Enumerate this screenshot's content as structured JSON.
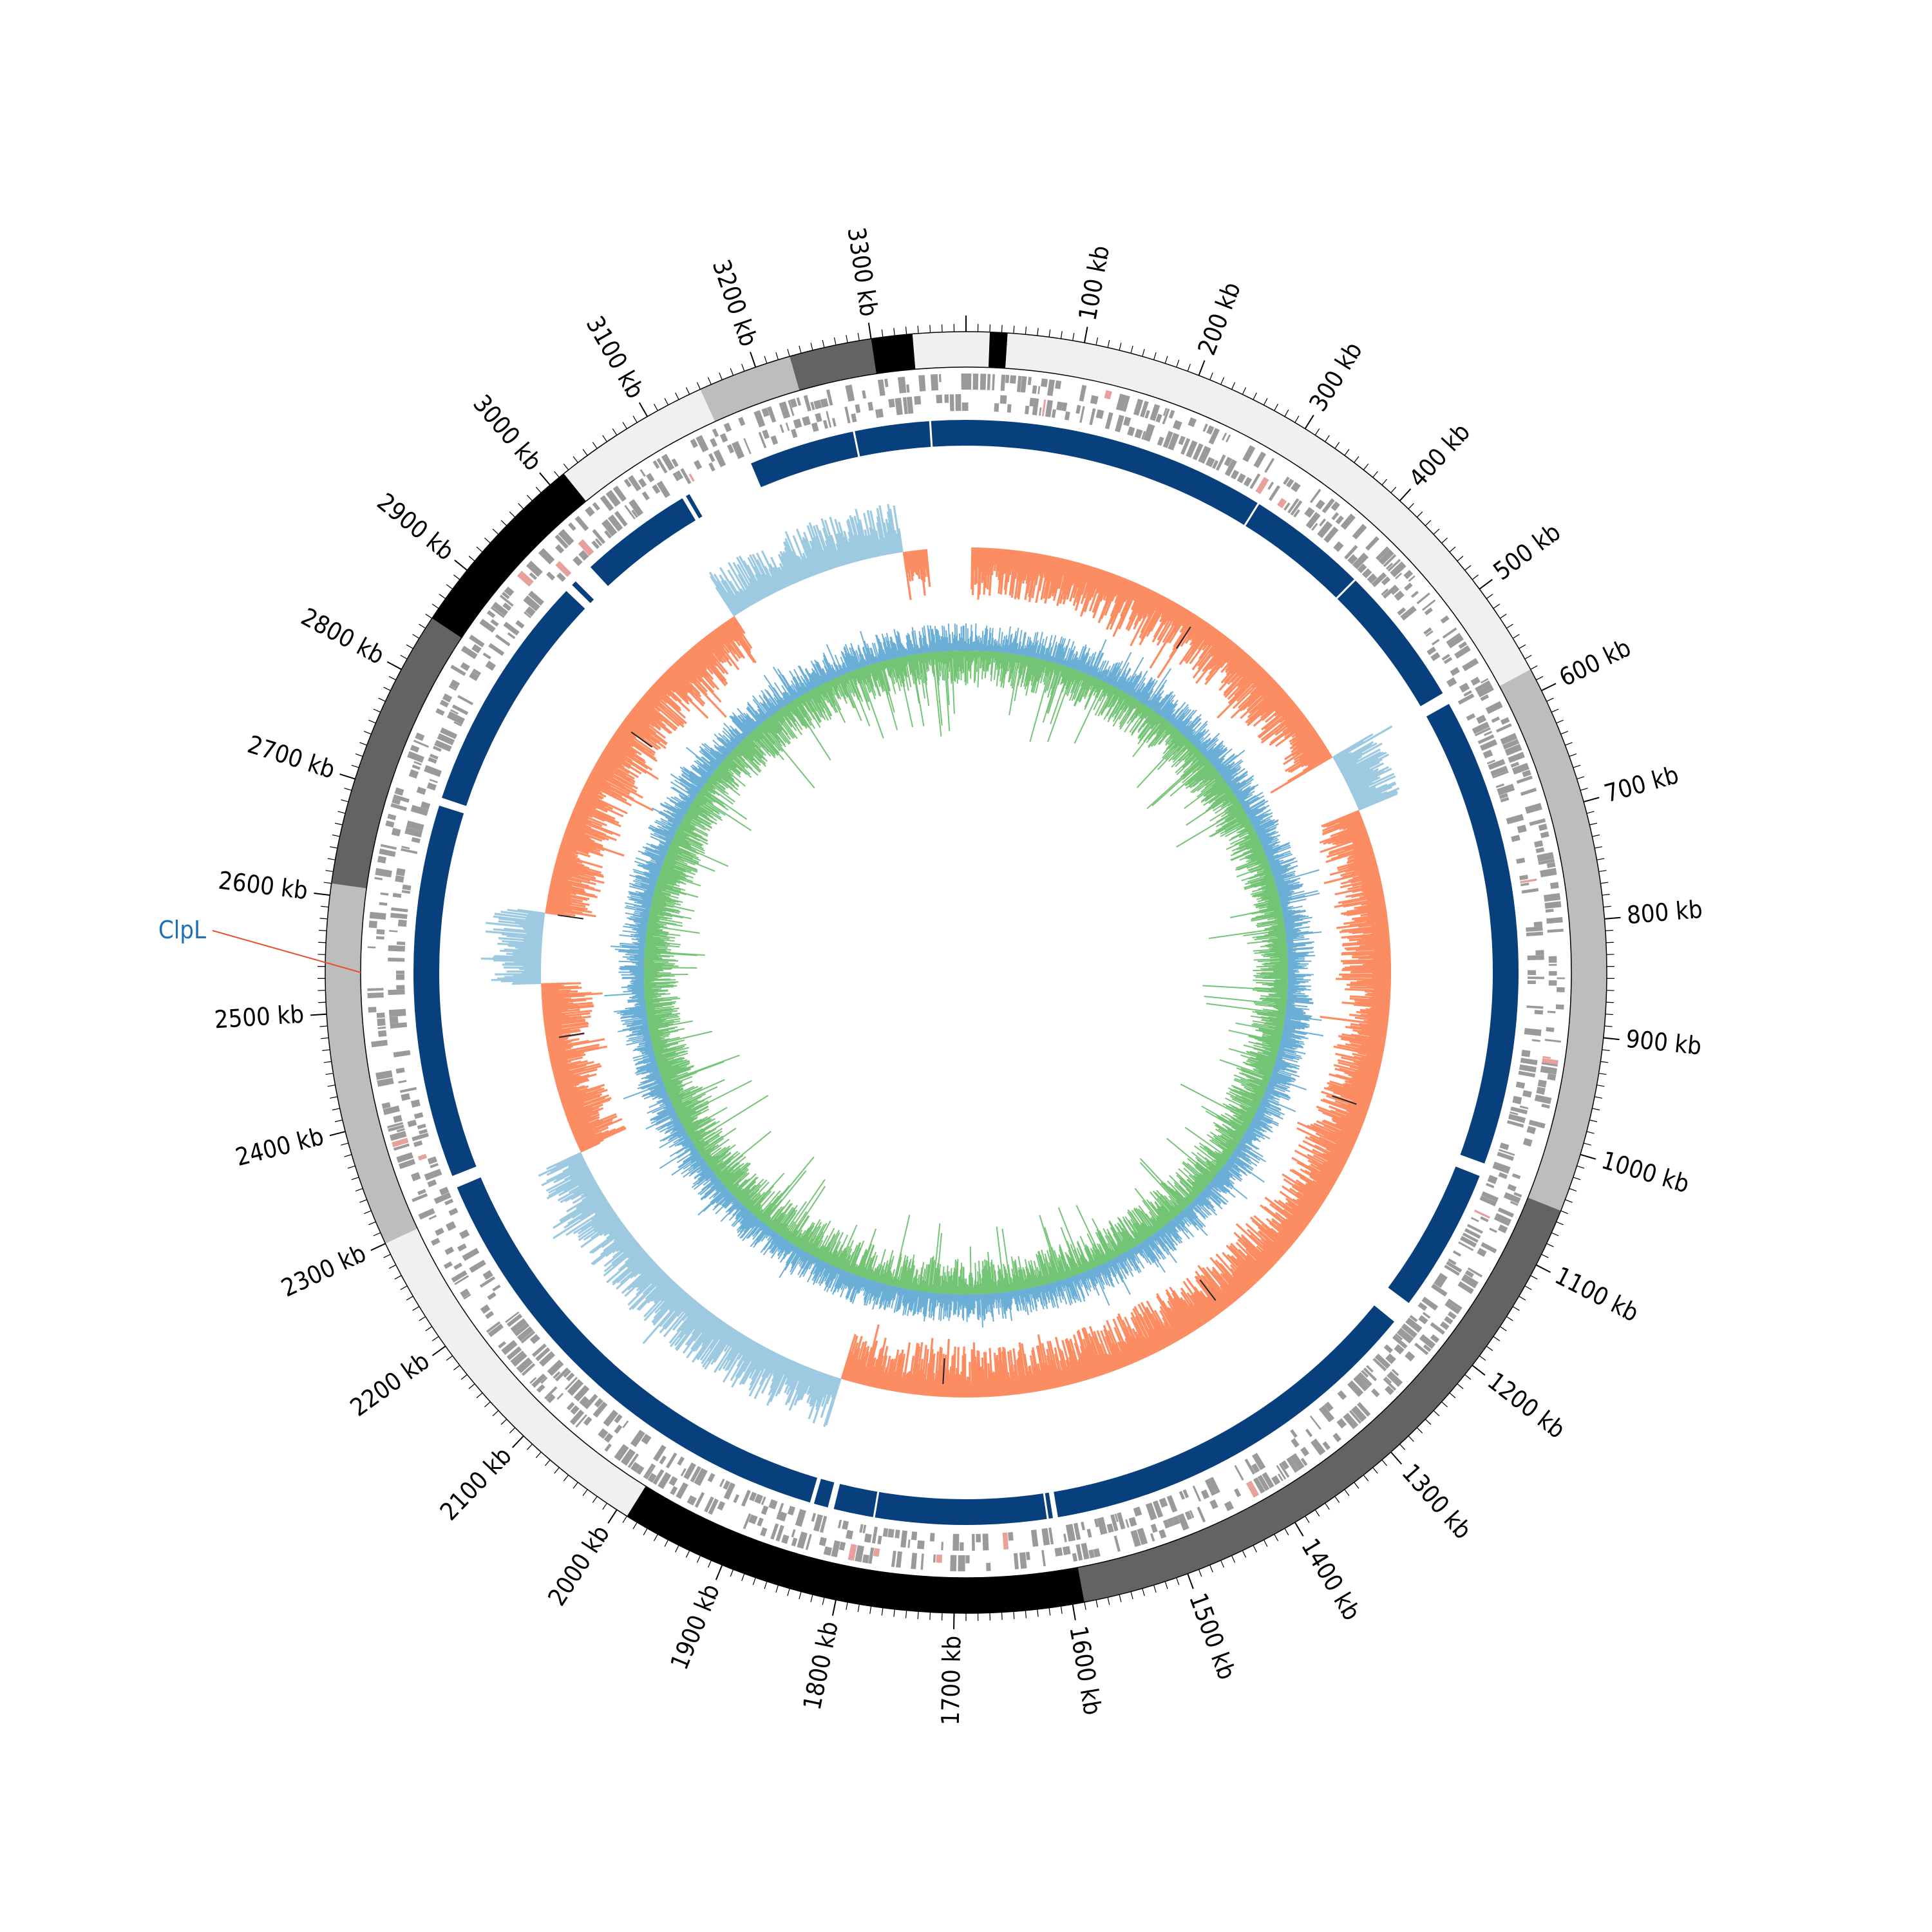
{
  "genome": {
    "length_kb": 3380,
    "tick_labels": [
      "100 kb",
      "200 kb",
      "300 kb",
      "400 kb",
      "500 kb",
      "600 kb",
      "700 kb",
      "800 kb",
      "900 kb",
      "1000 kb",
      "1100 kb",
      "1200 kb",
      "1300 kb",
      "1400 kb",
      "1500 kb",
      "1600 kb",
      "1700 kb",
      "1800 kb",
      "1900 kb",
      "2000 kb",
      "2100 kb",
      "2200 kb",
      "2300 kb",
      "2400 kb",
      "2500 kb",
      "2600 kb",
      "2700 kb",
      "2800 kb",
      "2900 kb",
      "3000 kb",
      "3100 kb",
      "3200 kb",
      "3300 kb"
    ]
  },
  "annotation": {
    "label": "ClpL",
    "position_kb": 2535,
    "label_color": "#1f6fb4",
    "line_color": "#e8502a"
  },
  "chart_data": {
    "type": "circos",
    "length_kb": 3380,
    "contig_band": [
      {
        "start": 0,
        "end": 20,
        "color": "#f0f0f0"
      },
      {
        "start": 20,
        "end": 35,
        "color": "#000000"
      },
      {
        "start": 35,
        "end": 580,
        "color": "#f0f0f0"
      },
      {
        "start": 580,
        "end": 1050,
        "color": "#bdbdbd"
      },
      {
        "start": 1050,
        "end": 1590,
        "color": "#636363"
      },
      {
        "start": 1590,
        "end": 1990,
        "color": "#000000"
      },
      {
        "start": 1990,
        "end": 2300,
        "color": "#f0f0f0"
      },
      {
        "start": 2300,
        "end": 2610,
        "color": "#bdbdbd"
      },
      {
        "start": 2610,
        "end": 2850,
        "color": "#636363"
      },
      {
        "start": 2850,
        "end": 3015,
        "color": "#000000"
      },
      {
        "start": 3015,
        "end": 3150,
        "color": "#f0f0f0"
      },
      {
        "start": 3150,
        "end": 3230,
        "color": "#bdbdbd"
      },
      {
        "start": 3230,
        "end": 3300,
        "color": "#636363"
      },
      {
        "start": 3300,
        "end": 3335,
        "color": "#000000"
      },
      {
        "start": 3335,
        "end": 3380,
        "color": "#f0f0f0"
      }
    ],
    "alignment_ring": {
      "color": "#08407e",
      "blocks": [
        {
          "start": 0,
          "end": 560
        },
        {
          "start": 572,
          "end": 1035
        },
        {
          "start": 1048,
          "end": 1190
        },
        {
          "start": 1213,
          "end": 1600
        },
        {
          "start": 1605,
          "end": 1820
        },
        {
          "start": 1826,
          "end": 1840
        },
        {
          "start": 1844,
          "end": 2320
        },
        {
          "start": 2332,
          "end": 2700
        },
        {
          "start": 2708,
          "end": 2945
        },
        {
          "start": 2953,
          "end": 2958
        },
        {
          "start": 2978,
          "end": 3090
        },
        {
          "start": 3094,
          "end": 3098
        },
        {
          "start": 3165,
          "end": 3380
        }
      ]
    },
    "ring_series": [
      {
        "name": "",
        "color": "#fc8d62",
        "ring": "outer-positive"
      },
      {
        "name": "",
        "color": "#9ecae1",
        "ring": "outer-negative"
      },
      {
        "name": "",
        "color": "#6baed6",
        "ring": "inner"
      },
      {
        "name": "",
        "color": "#74c476",
        "ring": "inner"
      }
    ],
    "negative_regions_kb": [
      {
        "start": 560,
        "end": 635
      },
      {
        "start": 2520,
        "end": 2610
      },
      {
        "start": 1850,
        "end": 2300
      },
      {
        "start": 3070,
        "end": 3300
      }
    ],
    "grey_ring_color": "#9a9a9a"
  }
}
